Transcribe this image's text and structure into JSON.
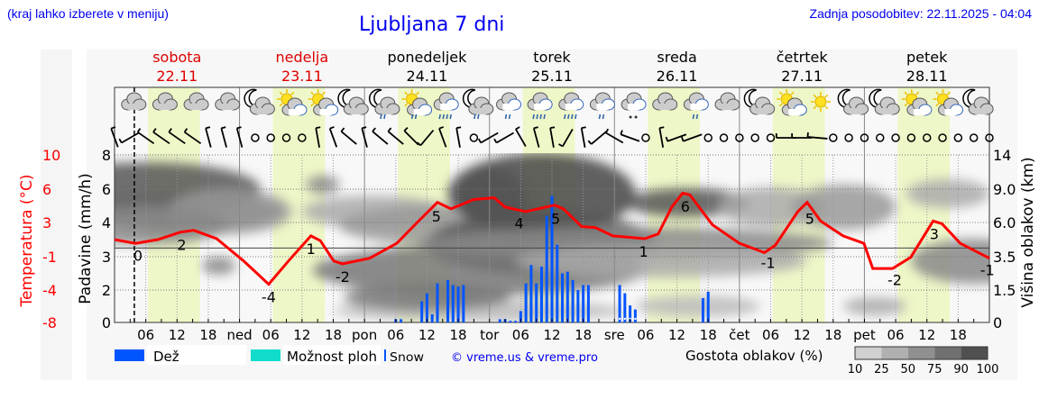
{
  "header": {
    "hint": "(kraj lahko izberete v meniju)",
    "title": "Ljubljana 7 dni",
    "updated": "Zadnja posodobitev: 22.11.2025 - 04:04"
  },
  "colors": {
    "temperature": "#ff0000",
    "rain": "#0055ff",
    "showers": "#11ddcc",
    "daylight": "#eef7c8",
    "weekend": "#dd0000",
    "link": "#0000ee"
  },
  "chart_data": {
    "type": "line+bar",
    "days": [
      {
        "name": "sobota",
        "date": "22.11",
        "weekend": true
      },
      {
        "name": "nedelja",
        "date": "23.11",
        "weekend": true
      },
      {
        "name": "ponedeljek",
        "date": "24.11",
        "weekend": false
      },
      {
        "name": "torek",
        "date": "25.11",
        "weekend": false
      },
      {
        "name": "sreda",
        "date": "26.11",
        "weekend": false
      },
      {
        "name": "četrtek",
        "date": "27.11",
        "weekend": false
      },
      {
        "name": "petek",
        "date": "28.11",
        "weekend": false
      }
    ],
    "x_tick_labels": [
      "06",
      "12",
      "18",
      "ned",
      "06",
      "12",
      "18",
      "pon",
      "06",
      "12",
      "18",
      "tor",
      "06",
      "12",
      "18",
      "sre",
      "06",
      "12",
      "18",
      "čet",
      "06",
      "12",
      "18",
      "pet",
      "06",
      "12",
      "18"
    ],
    "left_axis": {
      "label": "Padavine (mm/h)",
      "ticks": [
        "0",
        "2",
        "3",
        "4",
        "6",
        "8"
      ]
    },
    "temp_axis": {
      "label": "Temperatura (°C)",
      "ticks": [
        "-8",
        "-4",
        "-1",
        "3",
        "6",
        "10"
      ],
      "range": [
        -8,
        10
      ]
    },
    "right_axis": {
      "label": "Višina oblakov (km)",
      "ticks": [
        "0",
        "1.5",
        "3.5",
        "6.0",
        "9.0",
        "14"
      ]
    },
    "temperature": [
      [
        0,
        0.9
      ],
      [
        4,
        0.5
      ],
      [
        8.3,
        0.9
      ],
      [
        12.6,
        1.7
      ],
      [
        15.2,
        1.9
      ],
      [
        19.6,
        1.0
      ],
      [
        24.8,
        -1.4
      ],
      [
        29.6,
        -3.9
      ],
      [
        33.4,
        -1.4
      ],
      [
        37.7,
        1.3
      ],
      [
        39.5,
        0.8
      ],
      [
        42.1,
        -1.4
      ],
      [
        43.8,
        -1.7
      ],
      [
        49,
        -1.1
      ],
      [
        54.2,
        0.5
      ],
      [
        57.7,
        2.5
      ],
      [
        62,
        4.9
      ],
      [
        64.6,
        4.2
      ],
      [
        68.9,
        5.2
      ],
      [
        72.9,
        5.4
      ],
      [
        75,
        4.4
      ],
      [
        78.9,
        3.9
      ],
      [
        84.5,
        4.6
      ],
      [
        86.2,
        4.2
      ],
      [
        89.7,
        2.3
      ],
      [
        92.3,
        2.2
      ],
      [
        95.7,
        1.3
      ],
      [
        101.8,
        1.0
      ],
      [
        104.4,
        1.5
      ],
      [
        107,
        4.4
      ],
      [
        109.1,
        5.9
      ],
      [
        110.5,
        5.7
      ],
      [
        114.8,
        2.5
      ],
      [
        120,
        0.5
      ],
      [
        124.8,
        -0.5
      ],
      [
        126.9,
        0.3
      ],
      [
        131.2,
        3.9
      ],
      [
        133,
        4.9
      ],
      [
        135.6,
        2.9
      ],
      [
        139.9,
        1.3
      ],
      [
        143.9,
        0.5
      ],
      [
        145.6,
        -2.2
      ],
      [
        149.4,
        -2.2
      ],
      [
        152.9,
        -1.0
      ],
      [
        157.2,
        2.9
      ],
      [
        158.9,
        2.6
      ],
      [
        162.4,
        0.5
      ],
      [
        168,
        -1.1
      ]
    ],
    "temperature_labels": [
      {
        "hour": 4.5,
        "text": "0"
      },
      {
        "hour": 12.9,
        "text": "2"
      },
      {
        "hour": 29.6,
        "text": "-4"
      },
      {
        "hour": 37.7,
        "text": "1"
      },
      {
        "hour": 43.8,
        "text": "-2"
      },
      {
        "hour": 61.8,
        "text": "5"
      },
      {
        "hour": 77.7,
        "text": "4"
      },
      {
        "hour": 84.7,
        "text": "5"
      },
      {
        "hour": 101.6,
        "text": "1"
      },
      {
        "hour": 109.6,
        "text": "6"
      },
      {
        "hour": 125.5,
        "text": "-1"
      },
      {
        "hour": 133.5,
        "text": "5"
      },
      {
        "hour": 149.8,
        "text": "-2"
      },
      {
        "hour": 157.4,
        "text": "3"
      },
      {
        "hour": 167.6,
        "text": "-1"
      }
    ],
    "rain": [
      [
        54,
        0.2
      ],
      [
        55,
        0.2
      ],
      [
        59,
        1.3
      ],
      [
        60,
        1.8
      ],
      [
        61,
        0.5
      ],
      [
        62,
        2.2
      ],
      [
        64,
        2.3
      ],
      [
        65,
        2.15
      ],
      [
        66,
        2.1
      ],
      [
        67,
        2.15
      ],
      [
        74,
        0.2
      ],
      [
        75,
        0.2
      ],
      [
        76,
        0.1
      ],
      [
        77,
        0.1
      ],
      [
        78,
        0.7
      ],
      [
        79,
        2.2
      ],
      [
        80,
        2.75
      ],
      [
        81,
        2.2
      ],
      [
        82,
        2.7
      ],
      [
        83,
        4.4
      ],
      [
        84,
        5.6
      ],
      [
        85,
        3.35
      ],
      [
        86,
        2.5
      ],
      [
        87,
        2.55
      ],
      [
        88,
        2.3
      ],
      [
        89,
        2.0
      ],
      [
        90,
        2.15
      ],
      [
        91,
        2.15
      ],
      [
        97,
        2.15
      ],
      [
        98,
        1.8
      ],
      [
        99,
        1.05
      ],
      [
        100,
        0.8
      ],
      [
        113,
        1.5
      ],
      [
        114,
        1.9
      ]
    ],
    "snow_hours": [
      97,
      98,
      99,
      100
    ],
    "now_hour": 3.8,
    "weather_icons": [
      "cloud",
      "cloud",
      "cloud",
      "cloud",
      "moon-cloud",
      "sun-cloud",
      "sun-cloud",
      "moon-cloud-small",
      "moon-cloud-rain",
      "sun-cloud-rain",
      "cloud-rain-heavy",
      "moon-cloud-rain",
      "cloud-rain",
      "cloud-rain-heavy",
      "cloud-rain-heavy",
      "cloud-rain",
      "cloud-snow",
      "cloud",
      "cloud-rain",
      "cloud",
      "moon-cloud",
      "sun-cloud",
      "sun",
      "moon-cloud-small",
      "moon-cloud-small",
      "sun-cloud",
      "sun-behind-cloud",
      "moon-cloud"
    ],
    "wind": [
      70,
      -30,
      35,
      35,
      35,
      35,
      75,
      75,
      75,
      "calm",
      "calm",
      "calm",
      "calm",
      80,
      70,
      40,
      75,
      40,
      40,
      45,
      -50,
      70,
      80,
      "calm",
      -30,
      -30,
      60,
      75,
      80,
      -60,
      80,
      -40,
      30,
      20,
      "calm",
      80,
      -20,
      -20,
      "calm",
      "calm",
      "calm",
      "calm",
      "calm",
      0,
      0,
      5,
      "calm",
      "calm",
      "calm",
      "calm",
      "calm",
      "calm",
      "calm",
      "calm",
      "calm",
      "calm",
      "calm"
    ]
  },
  "legend": {
    "rain": "Dež",
    "showers": "Možnost ploh",
    "snow": "Snow",
    "copyright": "© vreme.us & vreme.pro",
    "cloud_density": "Gostota oblakov (%)",
    "density_levels": [
      "10",
      "25",
      "50",
      "75",
      "90",
      "100"
    ],
    "density_colors": [
      "#d0d0d0",
      "#b0b0b0",
      "#909090",
      "#707070",
      "#505050"
    ]
  }
}
